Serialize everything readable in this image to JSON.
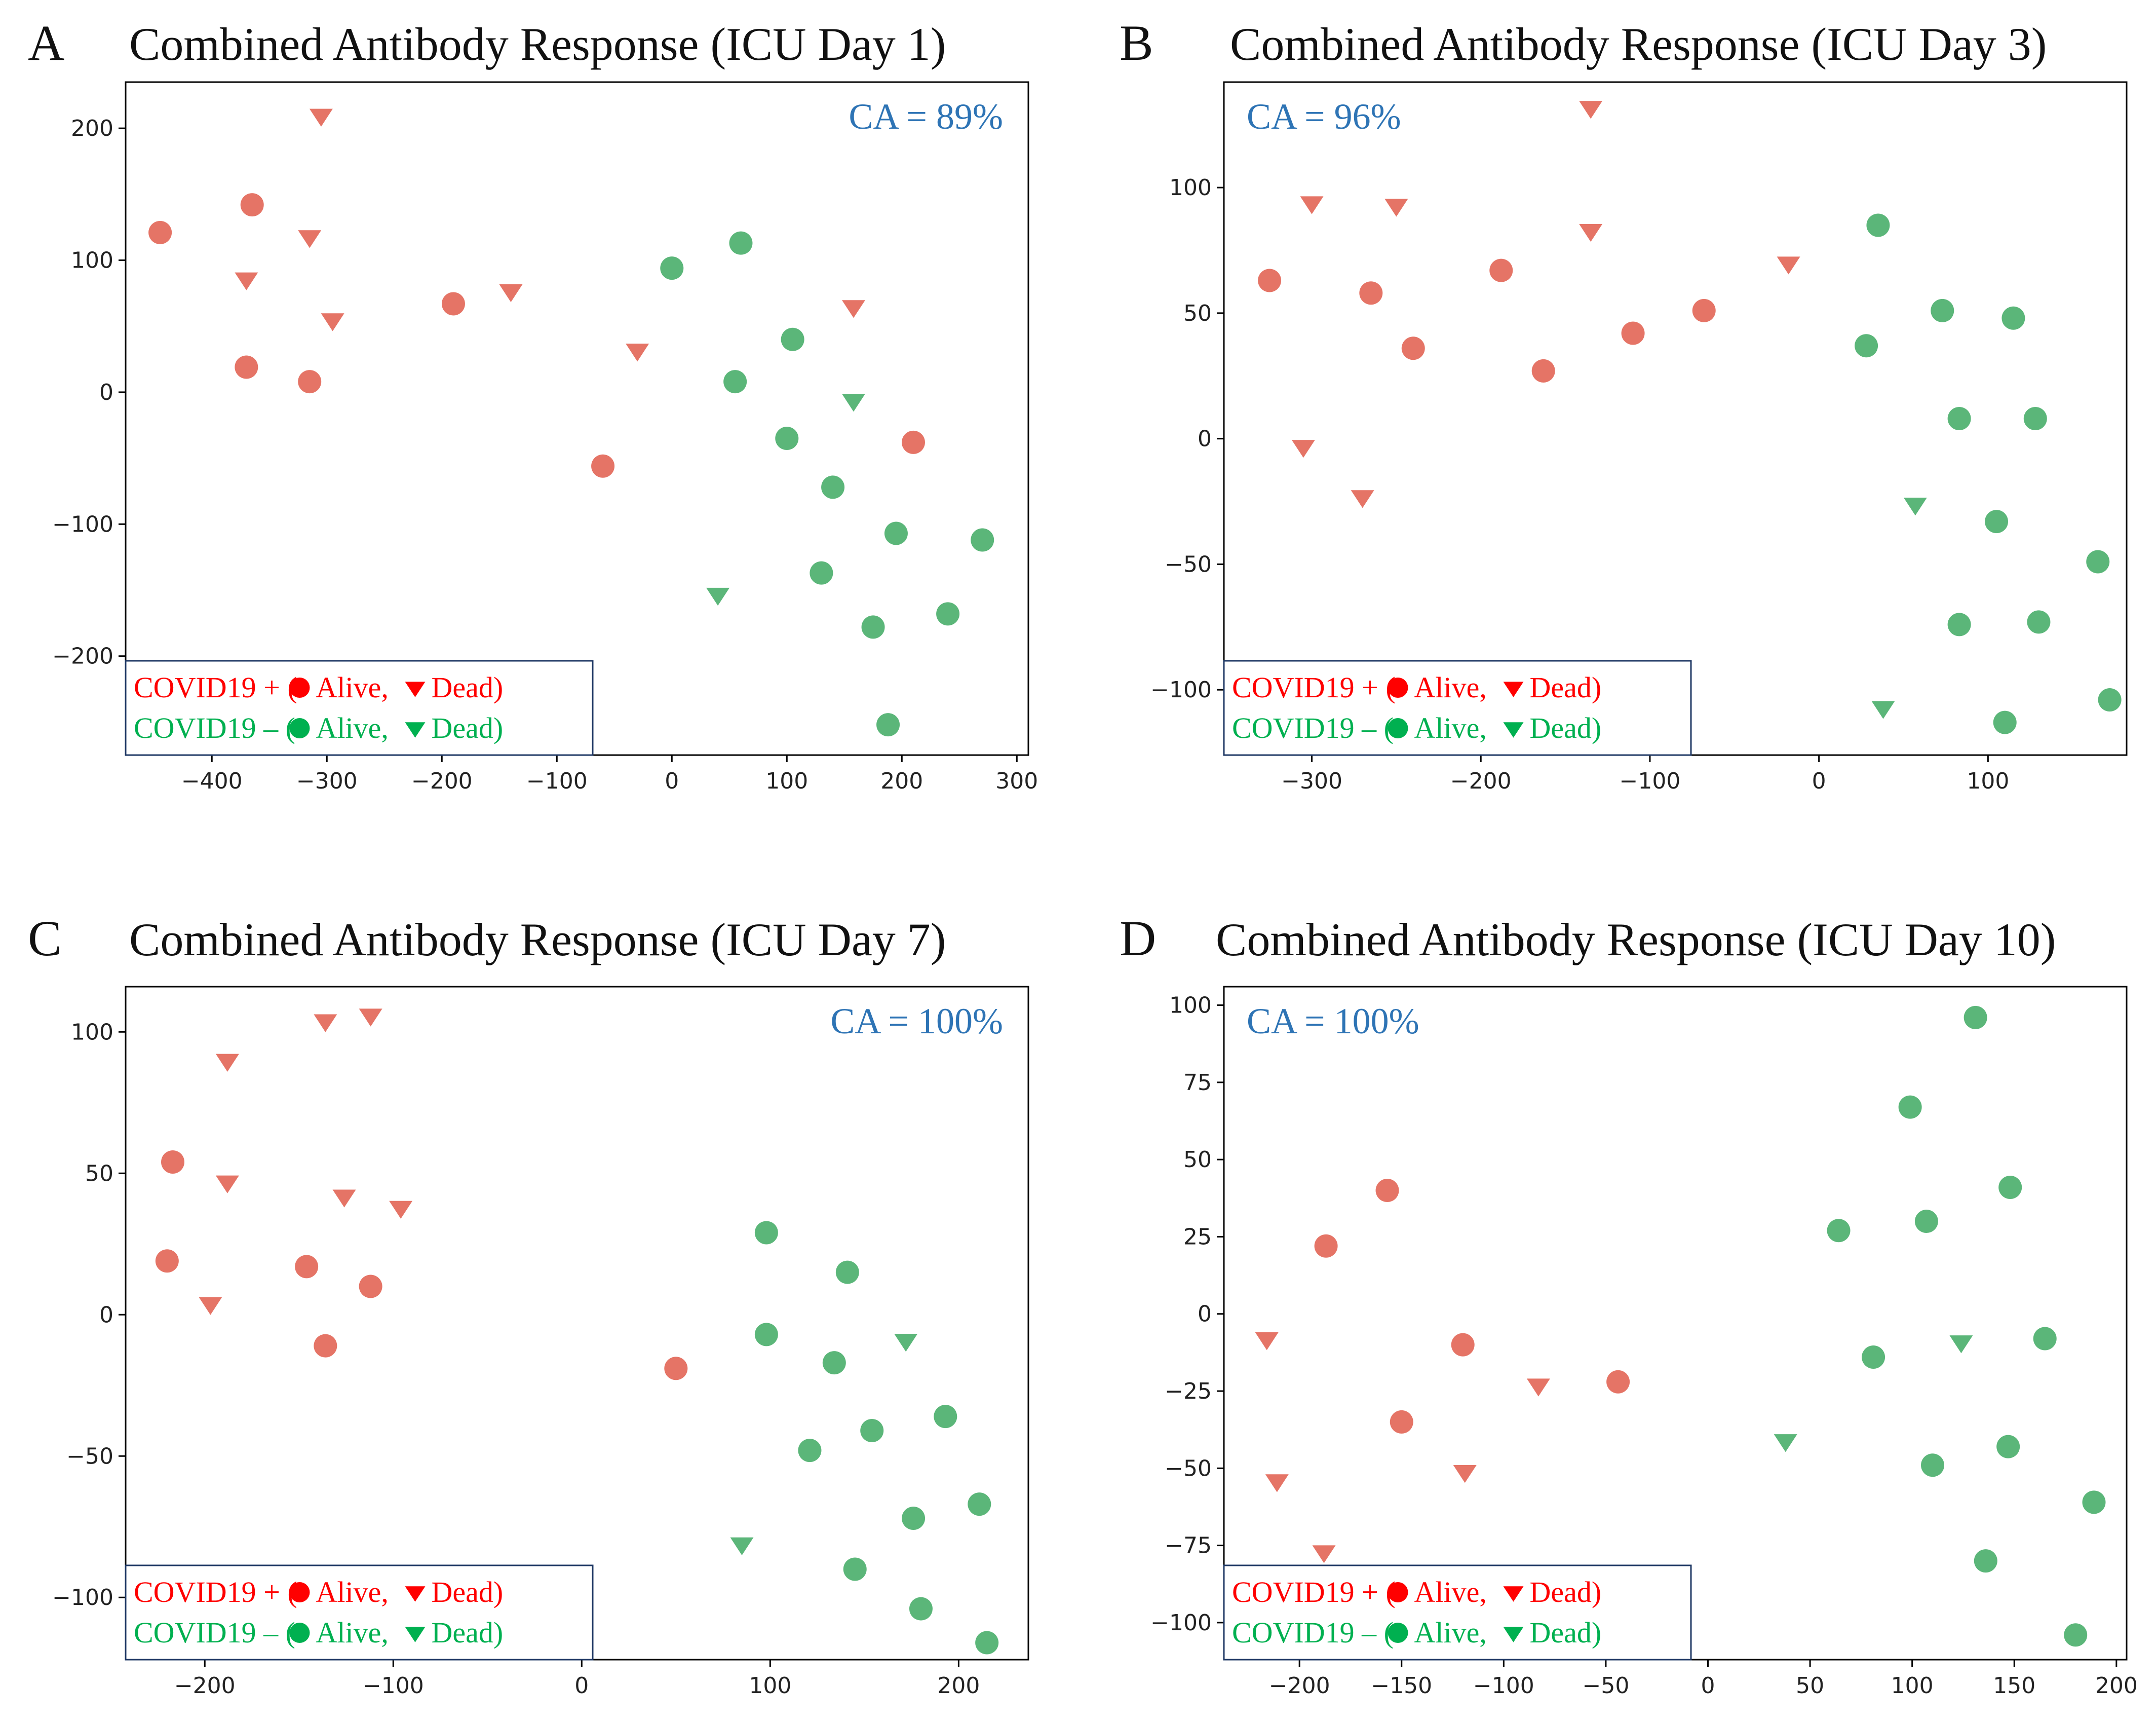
{
  "colors": {
    "red_marker": "#e57466",
    "green_marker": "#5bb679",
    "legend_red": "#ff0000",
    "legend_green": "#00b050",
    "ca_blue": "#2e74b5",
    "legend_border": "#1f3864",
    "axes": "#000000"
  },
  "legend": {
    "pos_prefix": "COVID19 + (",
    "neg_prefix": "COVID19 – (",
    "alive": "Alive,",
    "dead": "Dead)"
  },
  "chart_data": [
    {
      "type": "scatter",
      "letter": "A",
      "title": "Combined Antibody Response (ICU Day 1)",
      "annotation": "CA = 89%",
      "annotation_position": "top-right",
      "legend_position": "bottom-left",
      "xlim": [
        -475,
        310
      ],
      "ylim": [
        -275,
        235
      ],
      "xticks": [
        -400,
        -300,
        -200,
        -100,
        0,
        100,
        200,
        300
      ],
      "yticks": [
        -200,
        -100,
        0,
        100,
        200
      ],
      "series": [
        {
          "name": "COVID19 + Alive",
          "color": "red",
          "marker": "circle",
          "points": [
            [
              -445,
              121
            ],
            [
              -365,
              142
            ],
            [
              -370,
              19
            ],
            [
              -315,
              8
            ],
            [
              -190,
              67
            ],
            [
              -60,
              -56
            ],
            [
              210,
              -38
            ]
          ]
        },
        {
          "name": "COVID19 + Dead",
          "color": "red",
          "marker": "triangle",
          "points": [
            [
              -305,
              210
            ],
            [
              -315,
              118
            ],
            [
              -370,
              86
            ],
            [
              -295,
              55
            ],
            [
              -140,
              77
            ],
            [
              -30,
              32
            ],
            [
              158,
              65
            ]
          ]
        },
        {
          "name": "COVID19 - Alive",
          "color": "green",
          "marker": "circle",
          "points": [
            [
              0,
              94
            ],
            [
              60,
              113
            ],
            [
              105,
              40
            ],
            [
              55,
              8
            ],
            [
              100,
              -35
            ],
            [
              140,
              -72
            ],
            [
              195,
              -107
            ],
            [
              270,
              -112
            ],
            [
              130,
              -137
            ],
            [
              240,
              -168
            ],
            [
              175,
              -178
            ],
            [
              188,
              -252
            ]
          ]
        },
        {
          "name": "COVID19 - Dead",
          "color": "green",
          "marker": "triangle",
          "points": [
            [
              158,
              -6
            ],
            [
              40,
              -153
            ]
          ]
        }
      ]
    },
    {
      "type": "scatter",
      "letter": "B",
      "title": "Combined Antibody Response (ICU Day 3)",
      "annotation": "CA = 96%",
      "annotation_position": "top-left",
      "legend_position": "bottom-left",
      "xlim": [
        -352,
        182
      ],
      "ylim": [
        -126,
        142
      ],
      "xticks": [
        -300,
        -200,
        -100,
        0,
        100
      ],
      "yticks": [
        -100,
        -50,
        0,
        50,
        100
      ],
      "series": [
        {
          "name": "COVID19 + Alive",
          "color": "red",
          "marker": "circle",
          "points": [
            [
              -325,
              63
            ],
            [
              -265,
              58
            ],
            [
              -240,
              36
            ],
            [
              -188,
              67
            ],
            [
              -163,
              27
            ],
            [
              -110,
              42
            ],
            [
              -68,
              51
            ]
          ]
        },
        {
          "name": "COVID19 + Dead",
          "color": "red",
          "marker": "triangle",
          "points": [
            [
              -135,
              132
            ],
            [
              -300,
              94
            ],
            [
              -250,
              93
            ],
            [
              -135,
              83
            ],
            [
              -18,
              70
            ],
            [
              -305,
              -3
            ],
            [
              -270,
              -23
            ]
          ]
        },
        {
          "name": "COVID19 - Alive",
          "color": "green",
          "marker": "circle",
          "points": [
            [
              35,
              85
            ],
            [
              73,
              51
            ],
            [
              115,
              48
            ],
            [
              28,
              37
            ],
            [
              83,
              8
            ],
            [
              128,
              8
            ],
            [
              105,
              -33
            ],
            [
              165,
              -49
            ],
            [
              83,
              -74
            ],
            [
              130,
              -73
            ],
            [
              172,
              -104
            ],
            [
              110,
              -113
            ]
          ]
        },
        {
          "name": "COVID19 - Dead",
          "color": "green",
          "marker": "triangle",
          "points": [
            [
              57,
              -26
            ],
            [
              38,
              -107
            ]
          ]
        }
      ]
    },
    {
      "type": "scatter",
      "letter": "C",
      "title": "Combined Antibody Response (ICU Day 7)",
      "annotation": "CA = 100%",
      "annotation_position": "top-right",
      "legend_position": "bottom-left",
      "xlim": [
        -242,
        237
      ],
      "ylim": [
        -122,
        116
      ],
      "xticks": [
        -200,
        -100,
        0,
        100,
        200
      ],
      "yticks": [
        -100,
        -50,
        0,
        50,
        100
      ],
      "series": [
        {
          "name": "COVID19 + Alive",
          "color": "red",
          "marker": "circle",
          "points": [
            [
              -217,
              54
            ],
            [
              -220,
              19
            ],
            [
              -146,
              17
            ],
            [
              -112,
              10
            ],
            [
              -136,
              -11
            ],
            [
              50,
              -19
            ]
          ]
        },
        {
          "name": "COVID19 + Dead",
          "color": "red",
          "marker": "triangle",
          "points": [
            [
              -112,
              106
            ],
            [
              -136,
              104
            ],
            [
              -188,
              90
            ],
            [
              -188,
              47
            ],
            [
              -126,
              42
            ],
            [
              -96,
              38
            ],
            [
              -197,
              4
            ]
          ]
        },
        {
          "name": "COVID19 - Alive",
          "color": "green",
          "marker": "circle",
          "points": [
            [
              98,
              29
            ],
            [
              141,
              15
            ],
            [
              98,
              -7
            ],
            [
              134,
              -17
            ],
            [
              154,
              -41
            ],
            [
              193,
              -36
            ],
            [
              121,
              -48
            ],
            [
              176,
              -72
            ],
            [
              211,
              -67
            ],
            [
              145,
              -90
            ],
            [
              180,
              -104
            ],
            [
              215,
              -116
            ]
          ]
        },
        {
          "name": "COVID19 - Dead",
          "color": "green",
          "marker": "triangle",
          "points": [
            [
              172,
              -9
            ],
            [
              85,
              -81
            ]
          ]
        }
      ]
    },
    {
      "type": "scatter",
      "letter": "D",
      "title": "Combined Antibody Response (ICU Day 10)",
      "annotation": "CA = 100%",
      "annotation_position": "top-left",
      "legend_position": "bottom-left",
      "xlim": [
        -237,
        205
      ],
      "ylim": [
        -112,
        106
      ],
      "xticks": [
        -200,
        -150,
        -100,
        -50,
        0,
        50,
        100,
        150,
        200
      ],
      "yticks": [
        -100,
        -75,
        -50,
        -25,
        0,
        25,
        50,
        75,
        100
      ],
      "series": [
        {
          "name": "COVID19 + Alive",
          "color": "red",
          "marker": "circle",
          "points": [
            [
              -157,
              40
            ],
            [
              -187,
              22
            ],
            [
              -120,
              -10
            ],
            [
              -44,
              -22
            ],
            [
              -150,
              -35
            ]
          ]
        },
        {
          "name": "COVID19 + Dead",
          "color": "red",
          "marker": "triangle",
          "points": [
            [
              -216,
              -8
            ],
            [
              -83,
              -23
            ],
            [
              -119,
              -51
            ],
            [
              -211,
              -54
            ],
            [
              -188,
              -77
            ]
          ]
        },
        {
          "name": "COVID19 - Alive",
          "color": "green",
          "marker": "circle",
          "points": [
            [
              131,
              96
            ],
            [
              99,
              67
            ],
            [
              148,
              41
            ],
            [
              64,
              27
            ],
            [
              107,
              30
            ],
            [
              81,
              -14
            ],
            [
              165,
              -8
            ],
            [
              110,
              -49
            ],
            [
              147,
              -43
            ],
            [
              189,
              -61
            ],
            [
              136,
              -80
            ],
            [
              180,
              -104
            ]
          ]
        },
        {
          "name": "COVID19 - Dead",
          "color": "green",
          "marker": "triangle",
          "points": [
            [
              124,
              -9
            ],
            [
              38,
              -41
            ]
          ]
        }
      ]
    }
  ]
}
